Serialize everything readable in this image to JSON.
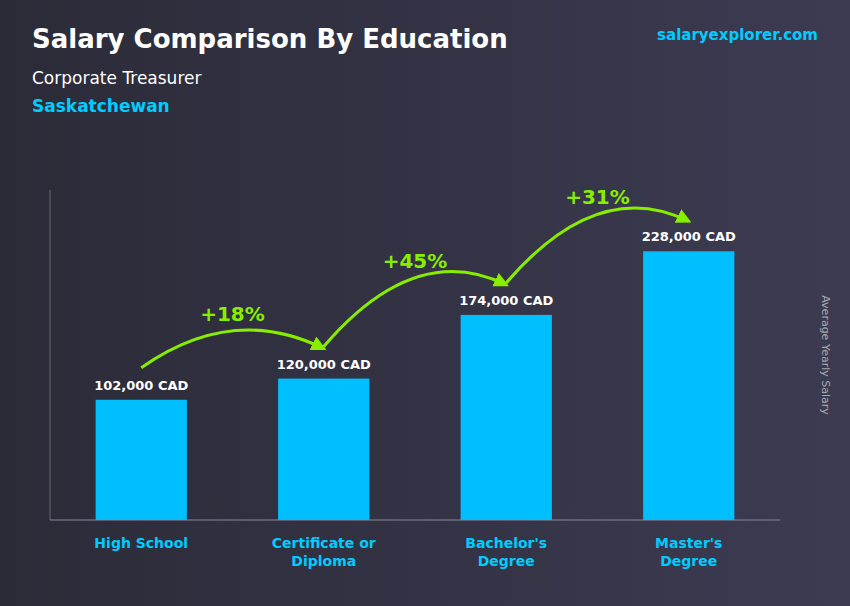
{
  "chart_data": {
    "type": "bar",
    "title": "Salary Comparison By Education",
    "subtitle": "Corporate Treasurer",
    "location": "Saskatchewan",
    "source": "salaryexplorer.com",
    "ylabel": "Average Yearly Salary",
    "categories": [
      "High School",
      "Certificate or\nDiploma",
      "Bachelor's\nDegree",
      "Master's\nDegree"
    ],
    "values": [
      102000,
      120000,
      174000,
      228000
    ],
    "value_labels": [
      "102,000 CAD",
      "120,000 CAD",
      "174,000 CAD",
      "228,000 CAD"
    ],
    "data_labels": true,
    "annotations": [
      "+18%",
      "+45%",
      "+31%"
    ],
    "color": "#00bfff",
    "ylim": [
      0,
      280000
    ],
    "tick_labels": "x",
    "grid": false
  }
}
